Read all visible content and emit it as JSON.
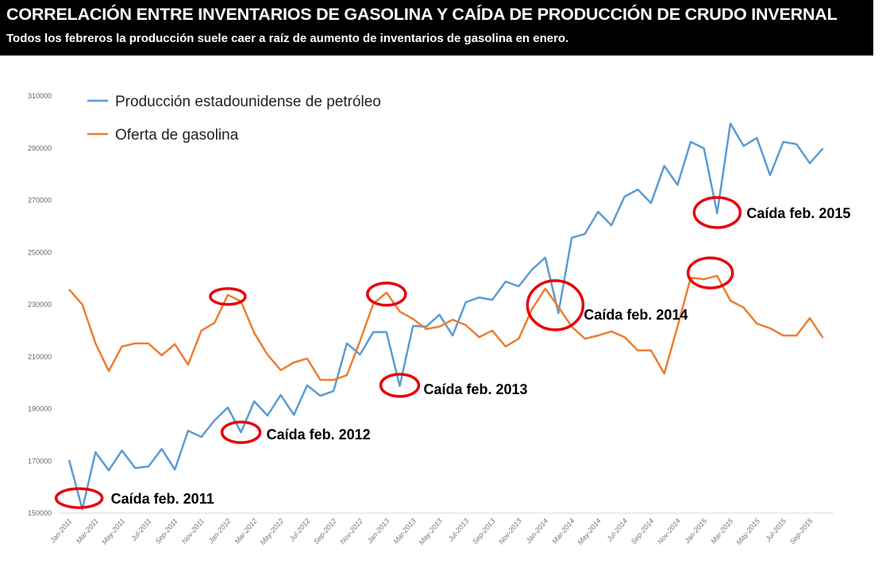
{
  "header": {
    "title": "CORRELACIÓN ENTRE INVENTARIOS DE GASOLINA Y CAÍDA DE PRODUCCIÓN DE CRUDO INVERNAL",
    "subtitle": "Todos los febreros la producción suele caer a raíz de aumento de inventarios de gasolina en enero."
  },
  "chart_data": {
    "type": "line",
    "title": "CORRELACIÓN ENTRE INVENTARIOS DE GASOLINA Y CAÍDA DE PRODUCCIÓN DE CRUDO INVERNAL",
    "xlabel": "",
    "ylabel": "",
    "ylim": [
      150000,
      310000
    ],
    "yticks": [
      "150000",
      "170000",
      "190000",
      "210000",
      "230000",
      "250000",
      "270000",
      "290000",
      "310000"
    ],
    "x": [
      "Jan-2011",
      "Feb-2011",
      "Mar-2011",
      "Apr-2011",
      "May-2011",
      "Jun-2011",
      "Jul-2011",
      "Aug-2011",
      "Sep-2011",
      "Oct-2011",
      "Nov-2011",
      "Dec-2011",
      "Jan-2012",
      "Feb-2012",
      "Mar-2012",
      "Apr-2012",
      "May-2012",
      "Jun-2012",
      "Jul-2012",
      "Aug-2012",
      "Sep-2012",
      "Oct-2012",
      "Nov-2012",
      "Dec-2012",
      "Jan-2013",
      "Feb-2013",
      "Mar-2013",
      "Apr-2013",
      "May-2013",
      "Jun-2013",
      "Jul-2013",
      "Aug-2013",
      "Sep-2013",
      "Oct-2013",
      "Nov-2013",
      "Dec-2013",
      "Jan-2014",
      "Feb-2014",
      "Mar-2014",
      "Apr-2014",
      "May-2014",
      "Jun-2014",
      "Jul-2014",
      "Aug-2014",
      "Sep-2014",
      "Oct-2014",
      "Nov-2014",
      "Dec-2014",
      "Jan-2015",
      "Feb-2015",
      "Mar-2015",
      "Apr-2015",
      "May-2015",
      "Jun-2015",
      "Jul-2015",
      "Aug-2015",
      "Sep-2015",
      "Oct-2015"
    ],
    "xtick_labels": [
      "Jan-2011",
      "Mar-2011",
      "May-2011",
      "Jul-2011",
      "Sep-2011",
      "Nov-2011",
      "Jan-2012",
      "Mar-2012",
      "May-2012",
      "Jul-2012",
      "Sep-2012",
      "Nov-2012",
      "Jan-2013",
      "Mar-2013",
      "May-2013",
      "Jul-2013",
      "Sep-2013",
      "Nov-2013",
      "Jan-2014",
      "Mar-2014",
      "May-2014",
      "Jul-2014",
      "Sep-2014",
      "Nov-2014",
      "Jan-2015",
      "Mar-2015",
      "May-2015",
      "Jul-2015",
      "Sep-2015"
    ],
    "legend_position": "top-left",
    "grid": false,
    "series": [
      {
        "name": "Producción estadounidense de petróleo",
        "color": "#5B9BD5",
        "values": [
          170400,
          151500,
          173400,
          166400,
          174000,
          167300,
          167900,
          174600,
          166700,
          181600,
          179200,
          185600,
          190500,
          181000,
          192900,
          187400,
          195300,
          187700,
          199000,
          195000,
          196800,
          215100,
          210800,
          219400,
          219400,
          198700,
          221800,
          221500,
          226100,
          218100,
          230900,
          232700,
          231800,
          238800,
          237000,
          243400,
          248000,
          226700,
          255600,
          257100,
          265600,
          260400,
          271400,
          274100,
          268900,
          283200,
          275900,
          292400,
          289900,
          265000,
          299400,
          290800,
          293900,
          279600,
          292400,
          291500,
          284200,
          289900
        ]
      },
      {
        "name": "Oferta de gasolina",
        "color": "#ED7D31",
        "values": [
          235800,
          230000,
          215100,
          204500,
          213900,
          215100,
          215100,
          210500,
          214800,
          206900,
          220000,
          223000,
          233700,
          231200,
          219100,
          210800,
          204800,
          207800,
          209300,
          201100,
          201100,
          202900,
          216000,
          230300,
          234600,
          227300,
          224500,
          220600,
          221500,
          224200,
          222100,
          217500,
          220000,
          213900,
          216900,
          228200,
          236100,
          229100,
          221500,
          216900,
          218100,
          219700,
          217500,
          212400,
          212400,
          203500,
          221500,
          240300,
          239700,
          241000,
          231500,
          228800,
          222700,
          220900,
          218100,
          218100,
          224800,
          217200
        ]
      }
    ],
    "annotations": [
      {
        "label": "Caída feb. 2011",
        "month": "Feb-2011",
        "series": 0
      },
      {
        "label": "Caída feb. 2012",
        "month": "Feb-2012",
        "series": 0
      },
      {
        "label": "Caída feb. 2013",
        "month": "Feb-2013",
        "series": 0
      },
      {
        "label": "Caída feb. 2014",
        "month": "Feb-2014",
        "series": 0
      },
      {
        "label": "Caída feb. 2015",
        "month": "Feb-2015",
        "series": 0
      }
    ],
    "highlights": [
      {
        "month": "Jan-2012",
        "series": 1
      },
      {
        "month": "Jan-2013",
        "series": 1
      },
      {
        "month": "Jan-2015",
        "series": 1
      }
    ],
    "highlight_color": "#E8000B"
  }
}
